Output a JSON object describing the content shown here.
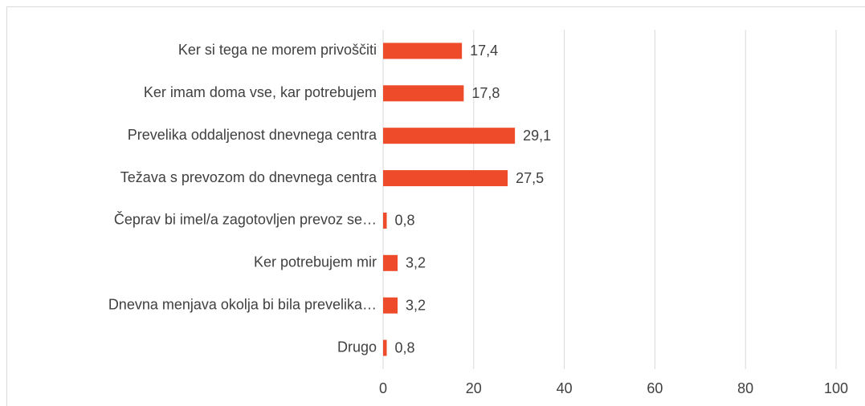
{
  "chart_data": {
    "type": "hbar",
    "categories": [
      "Ker si tega ne morem privoščiti",
      "Ker imam doma vse, kar potrebujem",
      "Prevelika oddaljenost dnevnega centra",
      "Težava s prevozom do dnevnega centra",
      "Čeprav bi imel/a zagotovljen prevoz se…",
      "Ker potrebujem mir",
      "Dnevna menjava okolja bi bila prevelika…",
      "Drugo"
    ],
    "values": [
      17.4,
      17.8,
      29.1,
      27.5,
      0.8,
      3.2,
      3.2,
      0.8
    ],
    "value_labels": [
      "17,4",
      "17,8",
      "29,1",
      "27,5",
      "0,8",
      "3,2",
      "3,2",
      "0,8"
    ],
    "color": "#ee4b2b",
    "xlim": [
      0,
      100
    ],
    "xticks": [
      0,
      20,
      40,
      60,
      80,
      100
    ],
    "grid": true
  }
}
